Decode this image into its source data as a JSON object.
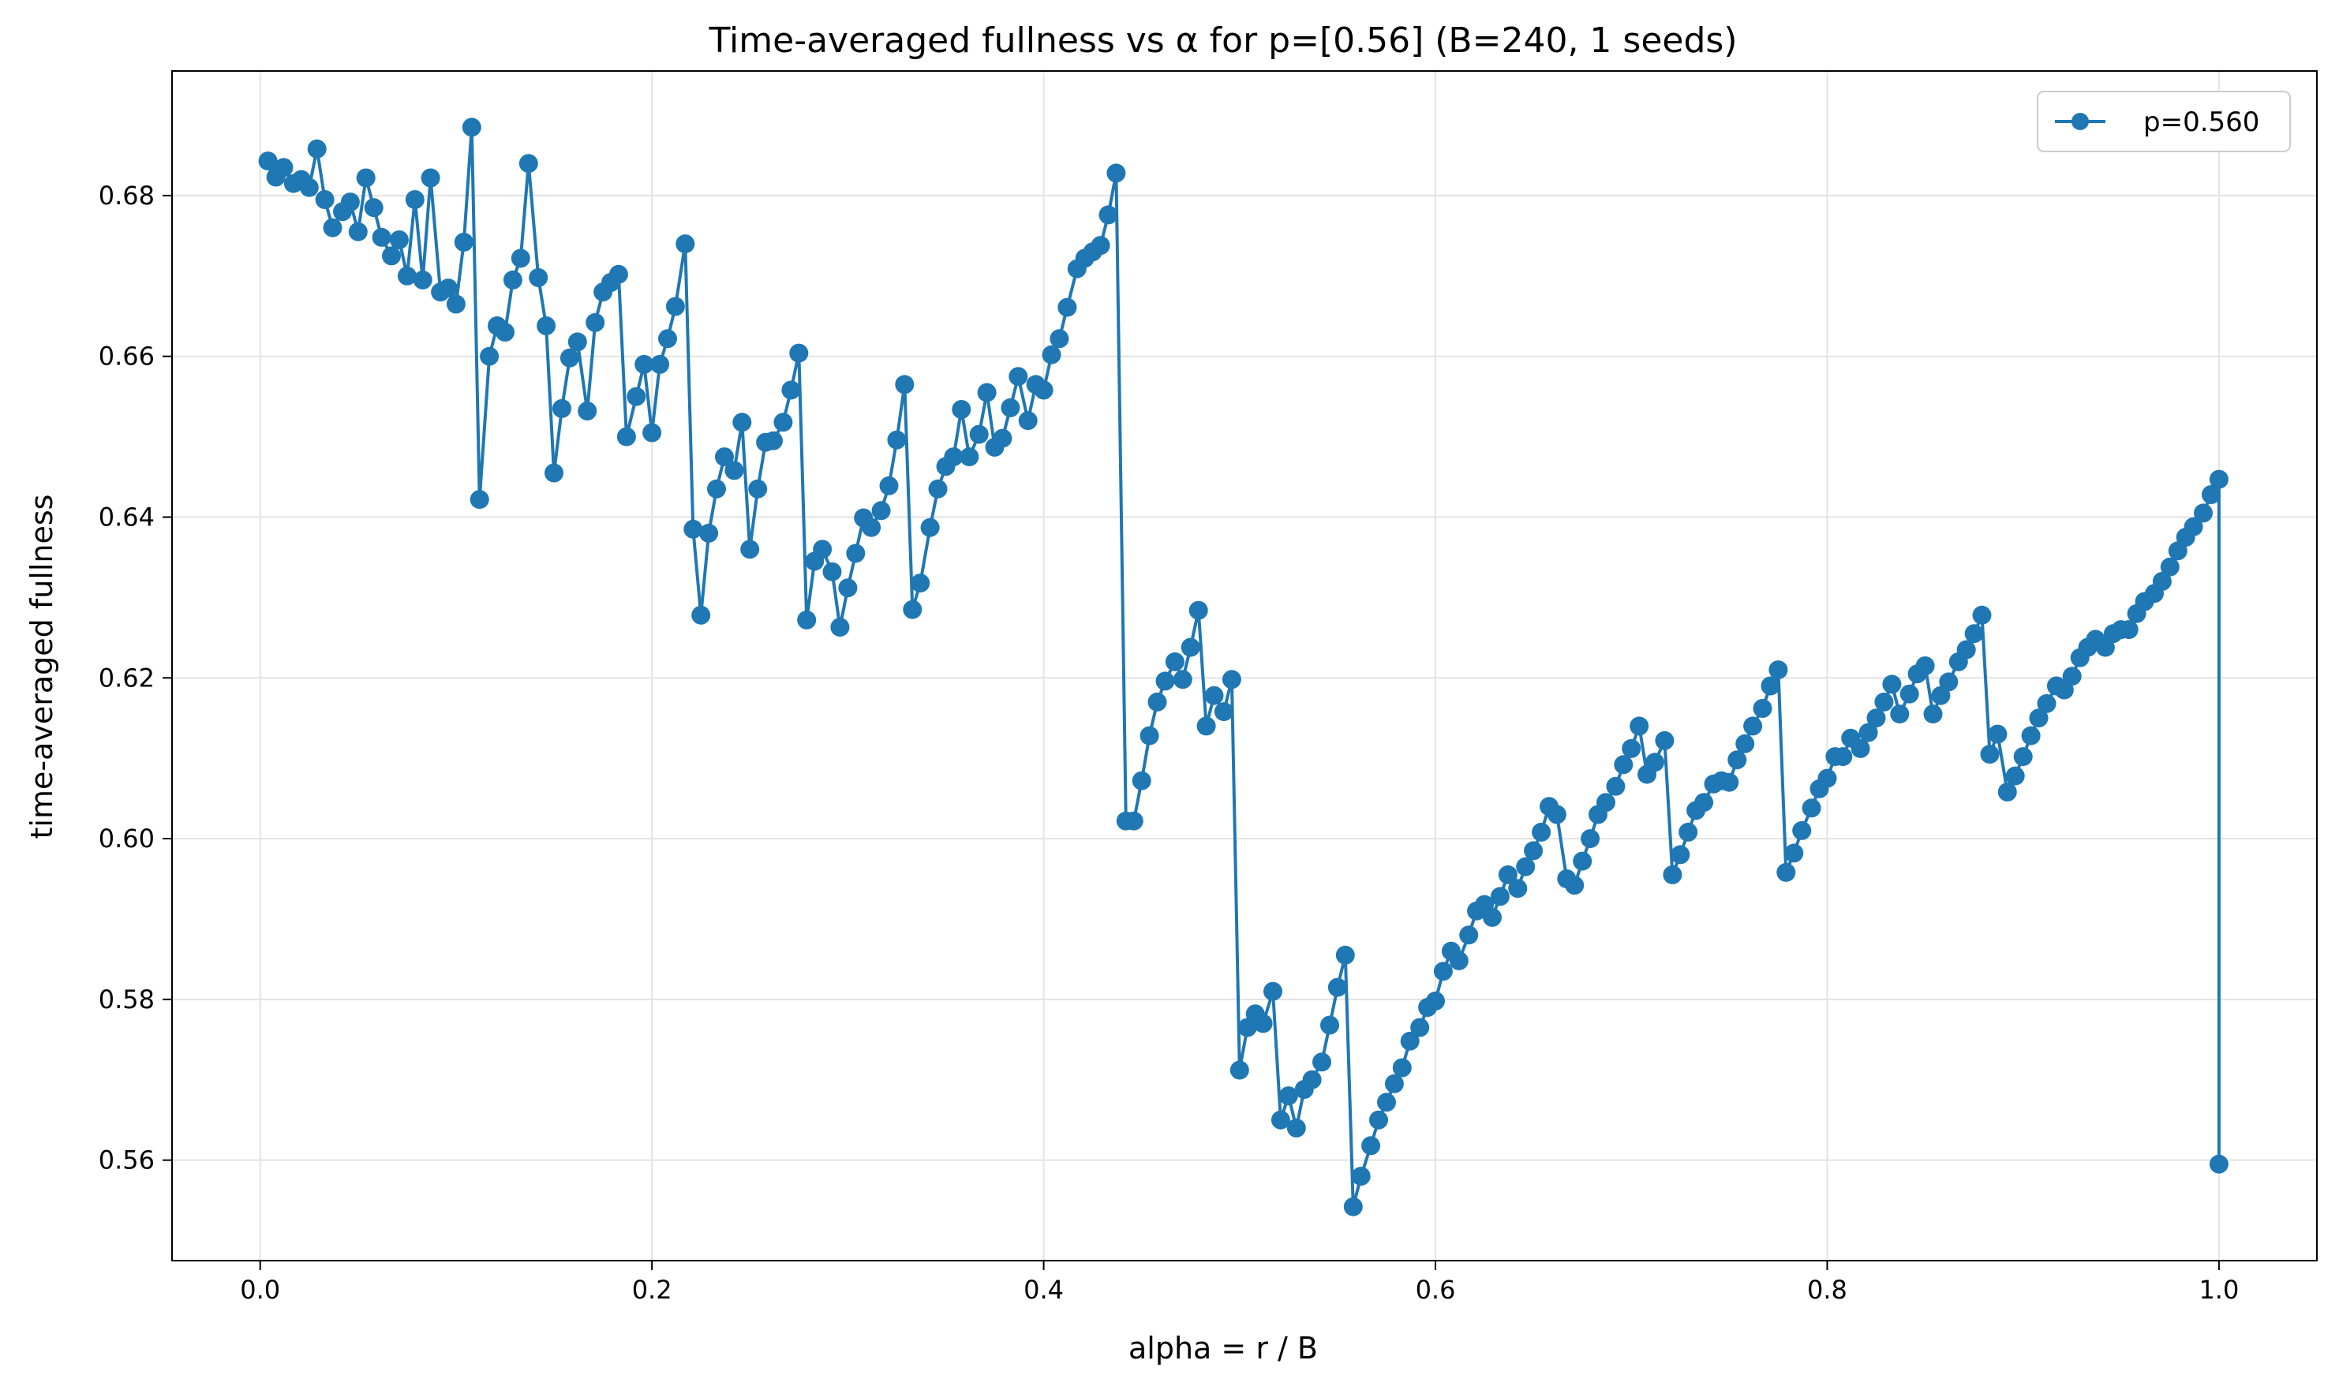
{
  "chart_data": {
    "type": "line",
    "title": "Time-averaged fullness vs α for p=[0.56] (B=240, 1 seeds)",
    "xlabel": "alpha = r / B",
    "ylabel": "time-averaged fullness",
    "xlim": [
      -0.045,
      1.05
    ],
    "ylim": [
      0.5475,
      0.6955
    ],
    "xticks": [
      0.0,
      0.2,
      0.4,
      0.6,
      0.8,
      1.0
    ],
    "xtick_labels": [
      "0.0",
      "0.2",
      "0.4",
      "0.6",
      "0.8",
      "1.0"
    ],
    "yticks": [
      0.56,
      0.58,
      0.6,
      0.62,
      0.64,
      0.66,
      0.68
    ],
    "ytick_labels": [
      "0.56",
      "0.58",
      "0.60",
      "0.62",
      "0.64",
      "0.66",
      "0.68"
    ],
    "grid": true,
    "legend_position": "top-right",
    "series": [
      {
        "name": "p=0.560",
        "color": "#1f77b4",
        "marker": "circle",
        "points": [
          [
            0.004,
            0.6843
          ],
          [
            0.008,
            0.6823
          ],
          [
            0.012,
            0.6835
          ],
          [
            0.017,
            0.6815
          ],
          [
            0.021,
            0.682
          ],
          [
            0.025,
            0.681
          ],
          [
            0.029,
            0.6858
          ],
          [
            0.033,
            0.6795
          ],
          [
            0.037,
            0.676
          ],
          [
            0.042,
            0.678
          ],
          [
            0.046,
            0.6792
          ],
          [
            0.05,
            0.6755
          ],
          [
            0.054,
            0.6822
          ],
          [
            0.058,
            0.6785
          ],
          [
            0.062,
            0.6748
          ],
          [
            0.067,
            0.6725
          ],
          [
            0.071,
            0.6745
          ],
          [
            0.075,
            0.67
          ],
          [
            0.079,
            0.6795
          ],
          [
            0.083,
            0.6695
          ],
          [
            0.087,
            0.6822
          ],
          [
            0.092,
            0.668
          ],
          [
            0.096,
            0.6685
          ],
          [
            0.1,
            0.6665
          ],
          [
            0.104,
            0.6742
          ],
          [
            0.108,
            0.6885
          ],
          [
            0.112,
            0.6422
          ],
          [
            0.117,
            0.66
          ],
          [
            0.121,
            0.6638
          ],
          [
            0.125,
            0.663
          ],
          [
            0.129,
            0.6695
          ],
          [
            0.133,
            0.6722
          ],
          [
            0.137,
            0.684
          ],
          [
            0.142,
            0.6698
          ],
          [
            0.146,
            0.6638
          ],
          [
            0.15,
            0.6455
          ],
          [
            0.154,
            0.6535
          ],
          [
            0.158,
            0.6598
          ],
          [
            0.162,
            0.6618
          ],
          [
            0.167,
            0.6532
          ],
          [
            0.171,
            0.6642
          ],
          [
            0.175,
            0.668
          ],
          [
            0.179,
            0.6692
          ],
          [
            0.183,
            0.6702
          ],
          [
            0.187,
            0.65
          ],
          [
            0.192,
            0.655
          ],
          [
            0.196,
            0.659
          ],
          [
            0.2,
            0.6505
          ],
          [
            0.204,
            0.659
          ],
          [
            0.208,
            0.6622
          ],
          [
            0.212,
            0.6662
          ],
          [
            0.217,
            0.674
          ],
          [
            0.221,
            0.6385
          ],
          [
            0.225,
            0.6278
          ],
          [
            0.229,
            0.638
          ],
          [
            0.233,
            0.6435
          ],
          [
            0.237,
            0.6475
          ],
          [
            0.242,
            0.6458
          ],
          [
            0.246,
            0.6518
          ],
          [
            0.25,
            0.636
          ],
          [
            0.254,
            0.6435
          ],
          [
            0.258,
            0.6493
          ],
          [
            0.262,
            0.6495
          ],
          [
            0.267,
            0.6518
          ],
          [
            0.271,
            0.6558
          ],
          [
            0.275,
            0.6604
          ],
          [
            0.279,
            0.6272
          ],
          [
            0.283,
            0.6345
          ],
          [
            0.287,
            0.636
          ],
          [
            0.292,
            0.6332
          ],
          [
            0.296,
            0.6263
          ],
          [
            0.3,
            0.6312
          ],
          [
            0.304,
            0.6355
          ],
          [
            0.308,
            0.6399
          ],
          [
            0.312,
            0.6387
          ],
          [
            0.317,
            0.6408
          ],
          [
            0.321,
            0.6439
          ],
          [
            0.325,
            0.6496
          ],
          [
            0.329,
            0.6565
          ],
          [
            0.333,
            0.6285
          ],
          [
            0.337,
            0.6318
          ],
          [
            0.342,
            0.6387
          ],
          [
            0.346,
            0.6435
          ],
          [
            0.35,
            0.6463
          ],
          [
            0.354,
            0.6475
          ],
          [
            0.358,
            0.6534
          ],
          [
            0.362,
            0.6475
          ],
          [
            0.367,
            0.6503
          ],
          [
            0.371,
            0.6555
          ],
          [
            0.375,
            0.6487
          ],
          [
            0.379,
            0.6498
          ],
          [
            0.383,
            0.6536
          ],
          [
            0.387,
            0.6575
          ],
          [
            0.392,
            0.652
          ],
          [
            0.396,
            0.6565
          ],
          [
            0.4,
            0.6558
          ],
          [
            0.404,
            0.6602
          ],
          [
            0.408,
            0.6622
          ],
          [
            0.412,
            0.6661
          ],
          [
            0.417,
            0.6709
          ],
          [
            0.421,
            0.6722
          ],
          [
            0.425,
            0.673
          ],
          [
            0.429,
            0.6738
          ],
          [
            0.433,
            0.6776
          ],
          [
            0.437,
            0.6828
          ],
          [
            0.442,
            0.6022
          ],
          [
            0.446,
            0.6022
          ],
          [
            0.45,
            0.6072
          ],
          [
            0.454,
            0.6128
          ],
          [
            0.458,
            0.617
          ],
          [
            0.462,
            0.6196
          ],
          [
            0.467,
            0.622
          ],
          [
            0.471,
            0.6198
          ],
          [
            0.475,
            0.6238
          ],
          [
            0.479,
            0.6284
          ],
          [
            0.483,
            0.614
          ],
          [
            0.487,
            0.6178
          ],
          [
            0.492,
            0.6158
          ],
          [
            0.496,
            0.6198
          ],
          [
            0.5,
            0.5712
          ],
          [
            0.504,
            0.5765
          ],
          [
            0.508,
            0.5782
          ],
          [
            0.512,
            0.577
          ],
          [
            0.517,
            0.581
          ],
          [
            0.521,
            0.565
          ],
          [
            0.525,
            0.568
          ],
          [
            0.529,
            0.564
          ],
          [
            0.533,
            0.5688
          ],
          [
            0.537,
            0.57
          ],
          [
            0.542,
            0.5722
          ],
          [
            0.546,
            0.5768
          ],
          [
            0.55,
            0.5815
          ],
          [
            0.554,
            0.5855
          ],
          [
            0.558,
            0.5542
          ],
          [
            0.562,
            0.558
          ],
          [
            0.567,
            0.5618
          ],
          [
            0.571,
            0.565
          ],
          [
            0.575,
            0.5672
          ],
          [
            0.579,
            0.5695
          ],
          [
            0.583,
            0.5715
          ],
          [
            0.587,
            0.5748
          ],
          [
            0.592,
            0.5765
          ],
          [
            0.596,
            0.579
          ],
          [
            0.6,
            0.5798
          ],
          [
            0.604,
            0.5835
          ],
          [
            0.608,
            0.586
          ],
          [
            0.612,
            0.5848
          ],
          [
            0.617,
            0.588
          ],
          [
            0.621,
            0.591
          ],
          [
            0.625,
            0.5918
          ],
          [
            0.629,
            0.5902
          ],
          [
            0.633,
            0.5928
          ],
          [
            0.637,
            0.5955
          ],
          [
            0.642,
            0.5938
          ],
          [
            0.646,
            0.5965
          ],
          [
            0.65,
            0.5985
          ],
          [
            0.654,
            0.6008
          ],
          [
            0.658,
            0.604
          ],
          [
            0.662,
            0.603
          ],
          [
            0.667,
            0.595
          ],
          [
            0.671,
            0.5942
          ],
          [
            0.675,
            0.5972
          ],
          [
            0.679,
            0.6
          ],
          [
            0.683,
            0.603
          ],
          [
            0.687,
            0.6045
          ],
          [
            0.692,
            0.6065
          ],
          [
            0.696,
            0.6092
          ],
          [
            0.7,
            0.6112
          ],
          [
            0.704,
            0.614
          ],
          [
            0.708,
            0.608
          ],
          [
            0.712,
            0.6095
          ],
          [
            0.717,
            0.6122
          ],
          [
            0.721,
            0.5955
          ],
          [
            0.725,
            0.598
          ],
          [
            0.729,
            0.6008
          ],
          [
            0.733,
            0.6035
          ],
          [
            0.737,
            0.6045
          ],
          [
            0.742,
            0.6068
          ],
          [
            0.746,
            0.6072
          ],
          [
            0.75,
            0.607
          ],
          [
            0.754,
            0.6098
          ],
          [
            0.758,
            0.6118
          ],
          [
            0.762,
            0.614
          ],
          [
            0.767,
            0.6162
          ],
          [
            0.771,
            0.619
          ],
          [
            0.775,
            0.621
          ],
          [
            0.779,
            0.5958
          ],
          [
            0.783,
            0.5982
          ],
          [
            0.787,
            0.601
          ],
          [
            0.792,
            0.6038
          ],
          [
            0.796,
            0.6062
          ],
          [
            0.8,
            0.6075
          ],
          [
            0.804,
            0.6102
          ],
          [
            0.808,
            0.6102
          ],
          [
            0.812,
            0.6125
          ],
          [
            0.817,
            0.6112
          ],
          [
            0.821,
            0.6132
          ],
          [
            0.825,
            0.615
          ],
          [
            0.829,
            0.617
          ],
          [
            0.833,
            0.6192
          ],
          [
            0.837,
            0.6155
          ],
          [
            0.842,
            0.618
          ],
          [
            0.846,
            0.6205
          ],
          [
            0.85,
            0.6215
          ],
          [
            0.854,
            0.6155
          ],
          [
            0.858,
            0.6178
          ],
          [
            0.862,
            0.6195
          ],
          [
            0.867,
            0.622
          ],
          [
            0.871,
            0.6235
          ],
          [
            0.875,
            0.6255
          ],
          [
            0.879,
            0.6278
          ],
          [
            0.883,
            0.6105
          ],
          [
            0.887,
            0.613
          ],
          [
            0.892,
            0.6058
          ],
          [
            0.896,
            0.6078
          ],
          [
            0.9,
            0.6102
          ],
          [
            0.904,
            0.6128
          ],
          [
            0.908,
            0.615
          ],
          [
            0.912,
            0.6168
          ],
          [
            0.917,
            0.619
          ],
          [
            0.921,
            0.6185
          ],
          [
            0.925,
            0.6202
          ],
          [
            0.929,
            0.6225
          ],
          [
            0.933,
            0.6238
          ],
          [
            0.937,
            0.6248
          ],
          [
            0.942,
            0.6238
          ],
          [
            0.946,
            0.6255
          ],
          [
            0.95,
            0.626
          ],
          [
            0.954,
            0.626
          ],
          [
            0.958,
            0.628
          ],
          [
            0.962,
            0.6295
          ],
          [
            0.967,
            0.6305
          ],
          [
            0.971,
            0.632
          ],
          [
            0.975,
            0.6338
          ],
          [
            0.979,
            0.6358
          ],
          [
            0.983,
            0.6375
          ],
          [
            0.987,
            0.6388
          ],
          [
            0.992,
            0.6405
          ],
          [
            0.996,
            0.6428
          ],
          [
            1.0,
            0.6447
          ],
          [
            1.0,
            0.5595
          ]
        ]
      }
    ]
  }
}
